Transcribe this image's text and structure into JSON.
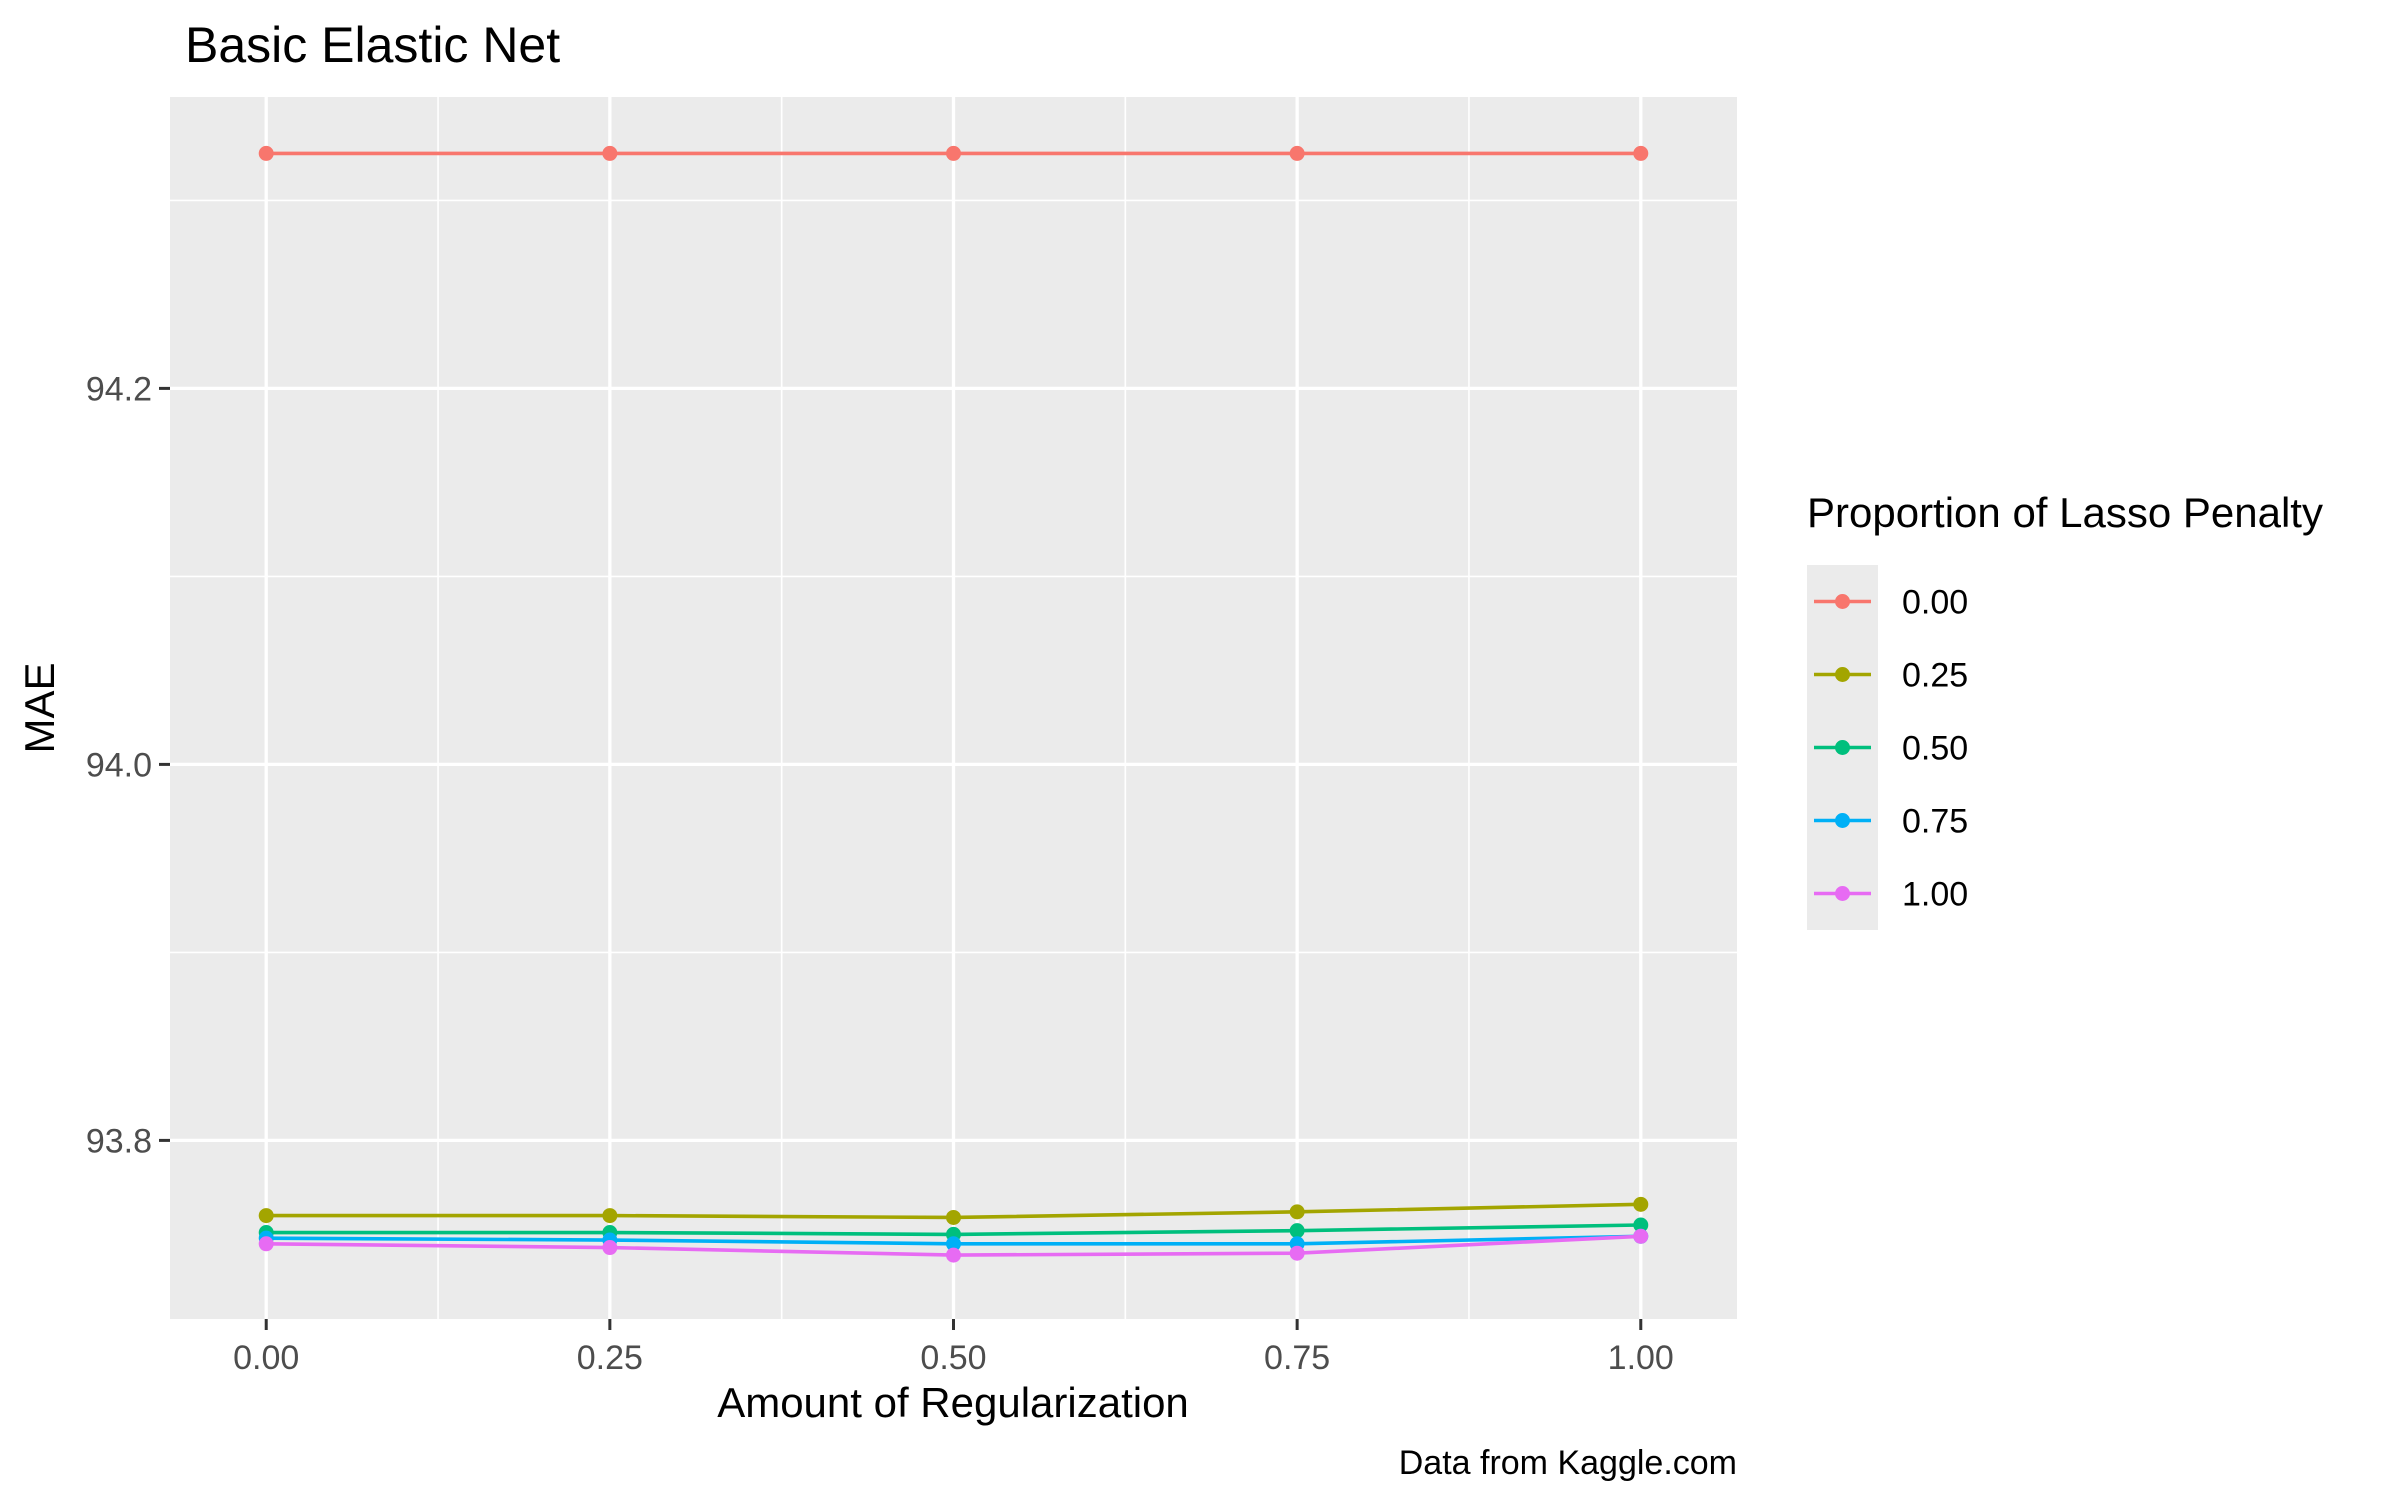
{
  "chart_data": {
    "type": "line",
    "title": "Basic Elastic Net",
    "xlabel": "Amount of Regularization",
    "ylabel": "MAE",
    "caption": "Data from Kaggle.com",
    "xlim": [
      -0.07,
      1.07
    ],
    "ylim": [
      93.705,
      94.355
    ],
    "x_ticks": [
      0.0,
      0.25,
      0.5,
      0.75,
      1.0
    ],
    "x_tick_labels": [
      "0.00",
      "0.25",
      "0.50",
      "0.75",
      "1.00"
    ],
    "y_ticks": [
      93.8,
      94.0,
      94.2
    ],
    "y_tick_labels": [
      "93.8",
      "94.0",
      "94.2"
    ],
    "grid": true,
    "legend": {
      "title": "Proportion of Lasso Penalty",
      "position": "right"
    },
    "x": [
      0.0,
      0.25,
      0.5,
      0.75,
      1.0
    ],
    "series": [
      {
        "name": "0.00",
        "color": "#F8766D",
        "values": [
          94.325,
          94.325,
          94.325,
          94.325,
          94.325
        ]
      },
      {
        "name": "0.25",
        "color": "#A3A500",
        "values": [
          93.76,
          93.76,
          93.759,
          93.762,
          93.766
        ]
      },
      {
        "name": "0.50",
        "color": "#00BF7D",
        "values": [
          93.751,
          93.751,
          93.75,
          93.752,
          93.755
        ]
      },
      {
        "name": "0.75",
        "color": "#00B0F6",
        "values": [
          93.748,
          93.747,
          93.745,
          93.745,
          93.749
        ]
      },
      {
        "name": "1.00",
        "color": "#E76BF3",
        "values": [
          93.745,
          93.743,
          93.739,
          93.74,
          93.749
        ]
      }
    ]
  }
}
